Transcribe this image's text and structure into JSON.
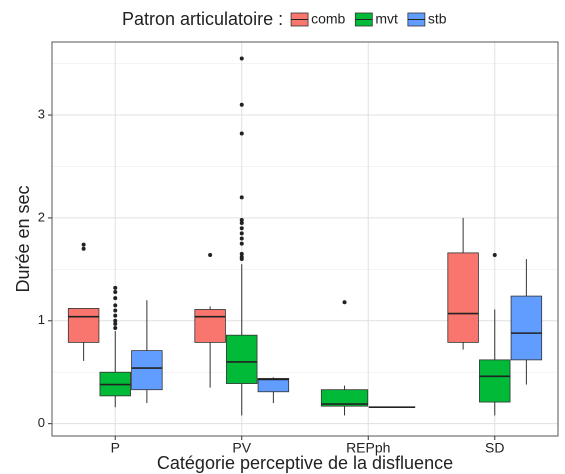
{
  "chart_data": {
    "type": "boxplot",
    "legend_title": "Patron articulatoire :",
    "x_label": "Catégorie perceptive de la disfluence",
    "y_label": "Durée en sec",
    "categories": [
      "P",
      "PV",
      "REPph",
      "SD"
    ],
    "ylim": [
      -0.12,
      3.71
    ],
    "yticks": [
      0,
      1,
      2,
      3
    ],
    "minor_yticks": [
      0.5,
      1.5,
      2.5,
      3.5
    ],
    "grid": true,
    "legend_position": "top",
    "series": [
      {
        "name": "comb",
        "color": "#F8766D",
        "values": [
          {
            "min": 0.61,
            "q1": 0.79,
            "median": 1.04,
            "q3": 1.12,
            "max": 1.12,
            "outliers": [
              1.7,
              1.74
            ]
          },
          {
            "min": 0.35,
            "q1": 0.79,
            "median": 1.04,
            "q3": 1.11,
            "max": 1.14,
            "outliers": [
              1.64
            ]
          },
          null,
          {
            "min": 0.72,
            "q1": 0.79,
            "median": 1.07,
            "q3": 1.66,
            "max": 2.0,
            "outliers": []
          }
        ]
      },
      {
        "name": "mvt",
        "color": "#00BA38",
        "values": [
          {
            "min": 0.16,
            "q1": 0.27,
            "median": 0.38,
            "q3": 0.5,
            "max": 0.9,
            "outliers": [
              0.93,
              0.97,
              1.0,
              1.05,
              1.1,
              1.15,
              1.22,
              1.28,
              1.32
            ]
          },
          {
            "min": 0.08,
            "q1": 0.39,
            "median": 0.6,
            "q3": 0.86,
            "max": 1.55,
            "outliers": [
              1.6,
              1.62,
              1.65,
              1.75,
              1.8,
              1.85,
              1.9,
              1.95,
              1.98,
              2.2,
              2.82,
              3.1,
              3.55
            ]
          },
          {
            "min": 0.08,
            "q1": 0.17,
            "median": 0.19,
            "q3": 0.33,
            "max": 0.37,
            "outliers": [
              1.18
            ]
          },
          {
            "min": 0.08,
            "q1": 0.21,
            "median": 0.46,
            "q3": 0.62,
            "max": 1.11,
            "outliers": [
              1.64
            ]
          }
        ]
      },
      {
        "name": "stb",
        "color": "#619CFF",
        "values": [
          {
            "min": 0.2,
            "q1": 0.33,
            "median": 0.54,
            "q3": 0.71,
            "max": 1.2,
            "outliers": []
          },
          {
            "min": 0.2,
            "q1": 0.31,
            "median": 0.43,
            "q3": 0.44,
            "max": 0.45,
            "outliers": []
          },
          {
            "min": 0.16,
            "q1": 0.16,
            "median": 0.16,
            "q3": 0.16,
            "max": 0.16,
            "outliers": []
          },
          {
            "min": 0.38,
            "q1": 0.62,
            "median": 0.88,
            "q3": 1.24,
            "max": 1.6,
            "outliers": []
          }
        ]
      }
    ]
  }
}
